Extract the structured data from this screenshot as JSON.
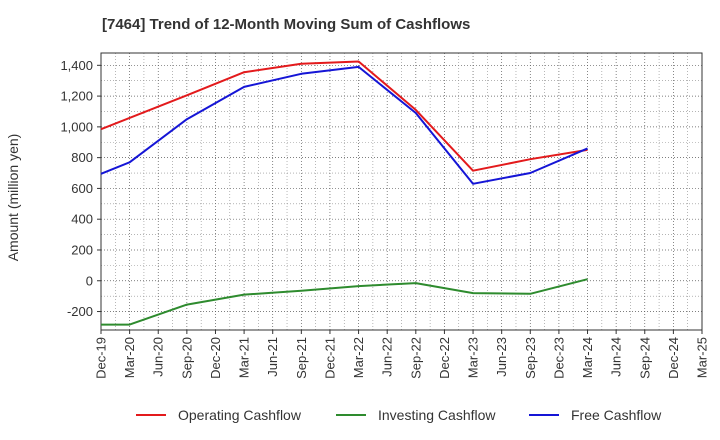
{
  "chart_data": {
    "type": "line",
    "title": "[7464]  Trend of 12-Month Moving Sum of Cashflows",
    "xlabel": "",
    "ylabel": "Amount (million yen)",
    "ylim": [
      -320,
      1480
    ],
    "yticks": [
      -200,
      0,
      200,
      400,
      600,
      800,
      1000,
      1200,
      1400
    ],
    "ytick_labels": [
      "-200",
      "0",
      "200",
      "400",
      "600",
      "800",
      "1,000",
      "1,200",
      "1,400"
    ],
    "grid": true,
    "legend_position": "bottom",
    "x": [
      "Dec-19",
      "Mar-20",
      "Jun-20",
      "Sep-20",
      "Dec-20",
      "Mar-21",
      "Jun-21",
      "Sep-21",
      "Dec-21",
      "Mar-22",
      "Jun-22",
      "Sep-22",
      "Dec-22",
      "Mar-23",
      "Jun-23",
      "Sep-23",
      "Dec-23",
      "Mar-24",
      "Jun-24",
      "Sep-24",
      "Dec-24",
      "Mar-25"
    ],
    "series": [
      {
        "name": "Operating Cashflow",
        "color": "#e31a1c",
        "values": [
          985,
          null,
          null,
          1205,
          null,
          1355,
          null,
          1410,
          null,
          1425,
          null,
          1110,
          null,
          715,
          null,
          790,
          null,
          850,
          null,
          null,
          null,
          null
        ]
      },
      {
        "name": "Investing Cashflow",
        "color": "#2e8b2e",
        "values": [
          -285,
          -285,
          null,
          -155,
          null,
          -90,
          null,
          -65,
          null,
          -35,
          null,
          -15,
          null,
          -80,
          null,
          -85,
          null,
          10,
          null,
          null,
          null,
          null
        ]
      },
      {
        "name": "Free Cashflow",
        "color": "#1515d6",
        "values": [
          695,
          770,
          null,
          1050,
          null,
          1260,
          null,
          1345,
          null,
          1390,
          null,
          1090,
          null,
          630,
          null,
          700,
          null,
          860,
          null,
          null,
          null,
          null
        ]
      }
    ]
  }
}
